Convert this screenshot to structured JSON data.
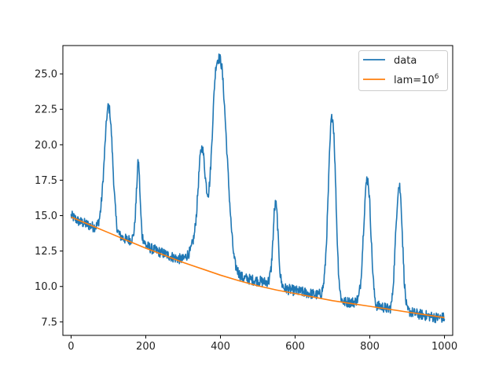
{
  "chart_data": {
    "type": "line",
    "xlim": [
      -22,
      1022
    ],
    "ylim": [
      6.55,
      27.0
    ],
    "xticks": [
      0,
      200,
      400,
      600,
      800,
      1000
    ],
    "xtick_labels": [
      "0",
      "200",
      "400",
      "600",
      "800",
      "1000"
    ],
    "yticks": [
      7.5,
      10.0,
      12.5,
      15.0,
      17.5,
      20.0,
      22.5,
      25.0
    ],
    "ytick_labels": [
      "7.5",
      "10.0",
      "12.5",
      "15.0",
      "17.5",
      "20.0",
      "22.5",
      "25.0"
    ],
    "grid": false,
    "legend_position": "upper right",
    "series": [
      {
        "name": "data",
        "color": "#1f77b4",
        "style": "noisy",
        "x": [
          0,
          20,
          40,
          60,
          70,
          76,
          80,
          84,
          88,
          92,
          96,
          100,
          104,
          108,
          112,
          116,
          120,
          124,
          130,
          140,
          150,
          160,
          166,
          170,
          174,
          178,
          180,
          182,
          186,
          190,
          200,
          220,
          240,
          260,
          280,
          300,
          320,
          330,
          336,
          340,
          344,
          348,
          352,
          356,
          360,
          364,
          368,
          372,
          376,
          380,
          384,
          388,
          392,
          396,
          400,
          404,
          408,
          412,
          416,
          420,
          424,
          428,
          432,
          436,
          440,
          450,
          460,
          480,
          500,
          520,
          530,
          536,
          540,
          544,
          548,
          552,
          556,
          560,
          564,
          570,
          580,
          600,
          620,
          640,
          660,
          670,
          676,
          680,
          684,
          688,
          692,
          696,
          700,
          704,
          708,
          712,
          716,
          720,
          724,
          730,
          740,
          760,
          770,
          776,
          780,
          784,
          788,
          792,
          796,
          800,
          804,
          808,
          812,
          816,
          820,
          830,
          840,
          850,
          856,
          860,
          864,
          868,
          872,
          876,
          880,
          884,
          888,
          892,
          896,
          900,
          910,
          920,
          940,
          960,
          980,
          1000
        ],
        "y": [
          15.0,
          14.6,
          14.4,
          14.2,
          14.3,
          14.8,
          15.6,
          16.9,
          18.6,
          20.5,
          22.1,
          22.8,
          22.3,
          20.8,
          18.6,
          16.5,
          14.9,
          14.0,
          13.6,
          13.4,
          13.3,
          13.3,
          13.5,
          14.2,
          16.0,
          18.3,
          18.9,
          18.3,
          15.5,
          13.6,
          12.9,
          12.6,
          12.4,
          12.2,
          12.0,
          11.9,
          12.5,
          13.6,
          15.2,
          16.9,
          18.6,
          19.7,
          19.8,
          18.9,
          17.6,
          16.7,
          16.6,
          17.6,
          19.6,
          22.0,
          24.2,
          25.6,
          26.0,
          26.1,
          26.0,
          25.4,
          24.0,
          22.2,
          20.2,
          18.2,
          16.3,
          14.6,
          13.2,
          12.1,
          11.5,
          10.9,
          10.6,
          10.5,
          10.4,
          10.3,
          10.4,
          11.3,
          13.0,
          15.2,
          16.0,
          14.9,
          12.6,
          10.9,
          10.2,
          9.9,
          9.8,
          9.7,
          9.6,
          9.5,
          9.4,
          9.5,
          10.1,
          11.2,
          13.2,
          16.0,
          19.2,
          21.6,
          22.1,
          20.8,
          17.6,
          13.9,
          11.2,
          9.7,
          9.1,
          8.9,
          8.9,
          8.9,
          9.2,
          10.4,
          12.3,
          14.5,
          16.5,
          17.6,
          17.4,
          15.8,
          13.3,
          11.0,
          9.5,
          8.8,
          8.6,
          8.6,
          8.5,
          8.4,
          8.5,
          9.2,
          10.7,
          12.9,
          15.2,
          16.9,
          17.1,
          15.8,
          13.1,
          10.6,
          9.1,
          8.3,
          8.2,
          8.1,
          8.0,
          7.9,
          7.8,
          7.8
        ]
      },
      {
        "name": "lam=10",
        "name_superscript": "6",
        "color": "#ff7f0e",
        "style": "smooth",
        "x": [
          0,
          50,
          100,
          150,
          200,
          250,
          300,
          350,
          400,
          450,
          500,
          550,
          600,
          650,
          700,
          750,
          800,
          850,
          900,
          950,
          1000
        ],
        "y": [
          14.9,
          14.35,
          13.8,
          13.25,
          12.7,
          12.2,
          11.7,
          11.25,
          10.8,
          10.4,
          10.05,
          9.75,
          9.5,
          9.25,
          9.0,
          8.8,
          8.6,
          8.4,
          8.2,
          8.0,
          7.8
        ]
      }
    ]
  }
}
